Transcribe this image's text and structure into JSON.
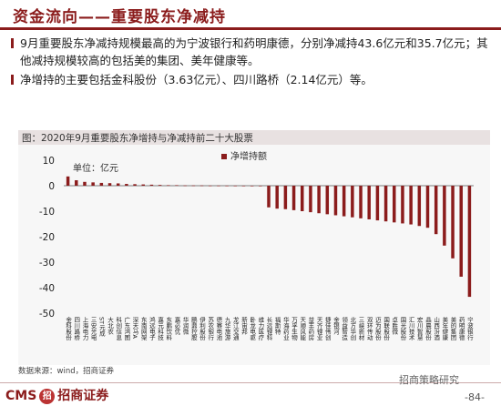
{
  "slide_title": "资金流向——重要股东净减持",
  "bullets": [
    "9月重要股东净减持规模最高的为宁波银行和药明康德，分别净减持43.6亿元和35.7亿元；其他减持规模较高的包括美的集团、美年健康等。",
    "净增持的主要包括金科股份（3.63亿元）、四川路桥（2.14亿元）等。"
  ],
  "source": "数据来源：wind，招商证券",
  "logo": {
    "left": "CMS",
    "mark": "招",
    "right": "招商证券"
  },
  "watermark": "招商策略研究",
  "page_number": "-84-",
  "colors": {
    "accent": "#8b1c1c",
    "bar": "#8b1c1c"
  },
  "chart_data": {
    "type": "bar",
    "title": "图：2020年9月重要股东净增持与净减持前二十大股票",
    "unit": "单位：亿元",
    "legend": "净增持额",
    "legend_position": "top",
    "ylim": [
      -50,
      10
    ],
    "yticks": [
      10,
      0,
      -10,
      -20,
      -30,
      -40,
      -50
    ],
    "categories": [
      "金科股份",
      "四川路桥",
      "上海电力",
      "三安光电",
      "ST元成",
      "大北农",
      "科创信息",
      "广东鸿图",
      "深天马A",
      "东南网架",
      "鸿远电子",
      "嘉元科技",
      "东鹏饮料",
      "嘉必优",
      "华润微",
      "鹏鼎控股",
      "伊利股份",
      "苏农银行",
      "德赛电池",
      "九华旅游",
      "龙江交通",
      "新宙邦",
      "卧龙电驱",
      "维力医疗",
      "长远锂科",
      "福斯特",
      "华海药业",
      "万孚生物",
      "天顺风能",
      "益丰药房",
      "天齐锂业",
      "捷佳伟创",
      "金银河",
      "领益智造",
      "北方华创",
      "三峡新材",
      "双环传动",
      "迈为股份",
      "国联股份",
      "卓胜微",
      "国光股份",
      "汇川技术",
      "宏川智慧",
      "晶晨股份",
      "山西汾酒",
      "美年健康",
      "美的集团",
      "药明康德",
      "宁波银行"
    ],
    "values": [
      3.63,
      2.14,
      1.5,
      1.3,
      1.1,
      1.0,
      0.9,
      0.7,
      0.6,
      0.5,
      0.4,
      0.3,
      0.2,
      0.2,
      0.1,
      0.1,
      0.1,
      0.05,
      0.05,
      0.03,
      0.02,
      0.01,
      -0.05,
      -0.1,
      -8.5,
      -9.0,
      -9.2,
      -9.6,
      -10.0,
      -10.4,
      -10.8,
      -11.2,
      -11.6,
      -12.0,
      -12.4,
      -12.8,
      -13.2,
      -13.6,
      -14.0,
      -14.4,
      -14.8,
      -15.2,
      -15.8,
      -16.5,
      -19.0,
      -23.5,
      -28.5,
      -35.7,
      -43.6
    ]
  }
}
